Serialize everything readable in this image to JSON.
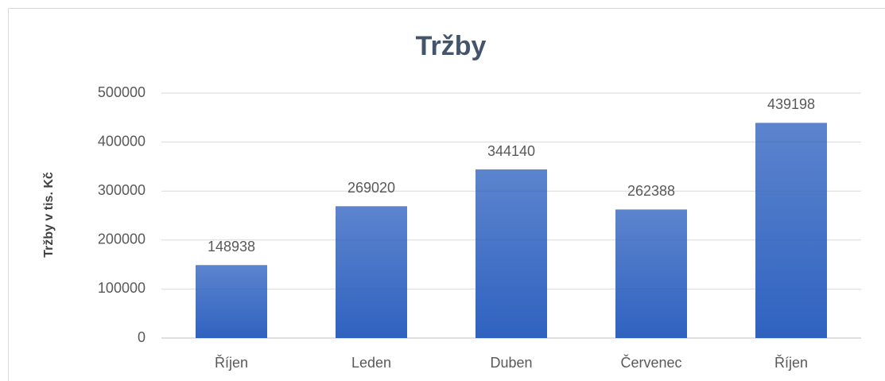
{
  "chart_data": {
    "type": "bar",
    "title": "Tržby",
    "y_label": "Tržby v tis. Kč",
    "categories": [
      "Říjen",
      "Leden",
      "Duben",
      "Červenec",
      "Říjen"
    ],
    "values": [
      148938,
      269020,
      344140,
      262388,
      439198
    ],
    "color": "#2f62c0",
    "ylim": [
      0,
      500000
    ],
    "yticks": [
      0,
      100000,
      200000,
      300000,
      400000,
      500000
    ],
    "grid": true
  }
}
